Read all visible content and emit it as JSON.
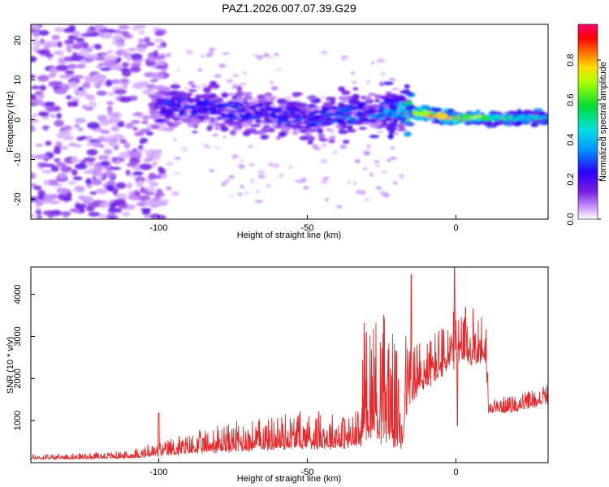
{
  "title": "PAZ1.2026.007.07.39.G29",
  "chart_data": [
    {
      "type": "heatmap",
      "xlabel": "Height of straight line (km)",
      "ylabel": "Frequency (Hz)",
      "xlim": [
        -143,
        31
      ],
      "ylim": [
        -25,
        24
      ],
      "xticks": [
        -100,
        -50,
        0
      ],
      "yticks": [
        20,
        10,
        0,
        -10,
        -20
      ],
      "colorbar": {
        "label": "Normalized spectral amplitude",
        "range": [
          0,
          0.98
        ],
        "ticks": [
          0,
          0.2,
          0.4,
          0.6,
          0.8
        ],
        "colormap": "white-purple-blue-cyan-green-yellow-red-magenta"
      },
      "ridge": [
        {
          "x": -100,
          "y": 3.5,
          "amp": 0.3
        },
        {
          "x": -90,
          "y": 3.0,
          "amp": 0.3
        },
        {
          "x": -80,
          "y": 2.5,
          "amp": 0.3
        },
        {
          "x": -70,
          "y": 2.0,
          "amp": 0.3
        },
        {
          "x": -60,
          "y": 1.0,
          "amp": 0.3
        },
        {
          "x": -50,
          "y": 0.5,
          "amp": 0.32
        },
        {
          "x": -40,
          "y": 1.0,
          "amp": 0.35
        },
        {
          "x": -30,
          "y": 2.0,
          "amp": 0.35
        },
        {
          "x": -20,
          "y": 2.5,
          "amp": 0.45
        },
        {
          "x": -10,
          "y": 1.5,
          "amp": 0.9
        },
        {
          "x": 0,
          "y": 0.5,
          "amp": 0.9
        },
        {
          "x": 10,
          "y": 0.5,
          "amp": 0.7
        },
        {
          "x": 20,
          "y": 0.5,
          "amp": 0.6
        },
        {
          "x": 31,
          "y": 0.5,
          "amp": 0.6
        }
      ]
    },
    {
      "type": "line",
      "xlabel": "Height of straight line (km)",
      "ylabel": "SNR (10 * v/v)",
      "xlim": [
        -143,
        31
      ],
      "ylim": [
        0,
        4650
      ],
      "xticks": [
        -100,
        -50,
        0
      ],
      "yticks": [
        1000,
        2000,
        3000,
        4000
      ],
      "color": "#e8282a",
      "envelope": [
        {
          "x": -143,
          "base": 90,
          "amp": 60
        },
        {
          "x": -125,
          "base": 100,
          "amp": 70
        },
        {
          "x": -110,
          "base": 120,
          "amp": 90
        },
        {
          "x": -100,
          "base": 180,
          "amp": 180
        },
        {
          "x": -90,
          "base": 250,
          "amp": 250
        },
        {
          "x": -80,
          "base": 300,
          "amp": 320
        },
        {
          "x": -70,
          "base": 350,
          "amp": 380
        },
        {
          "x": -60,
          "base": 380,
          "amp": 430
        },
        {
          "x": -50,
          "base": 420,
          "amp": 450
        },
        {
          "x": -40,
          "base": 420,
          "amp": 420
        },
        {
          "x": -32,
          "base": 440,
          "amp": 450
        },
        {
          "x": -31,
          "base": 900,
          "amp": 1500
        },
        {
          "x": -22,
          "base": 800,
          "amp": 1600
        },
        {
          "x": -18,
          "base": 400,
          "amp": 800
        },
        {
          "x": -17,
          "base": 1300,
          "amp": 1000
        },
        {
          "x": -10,
          "base": 1900,
          "amp": 600
        },
        {
          "x": 0,
          "base": 2400,
          "amp": 700
        },
        {
          "x": 10,
          "base": 2500,
          "amp": 700
        },
        {
          "x": 11,
          "base": 1200,
          "amp": 150
        },
        {
          "x": 20,
          "base": 1250,
          "amp": 200
        },
        {
          "x": 31,
          "base": 1450,
          "amp": 250
        }
      ],
      "spikes": [
        {
          "x": -100,
          "y": 1180
        },
        {
          "x": -15,
          "y": 4470
        },
        {
          "x": -0.5,
          "y": 4650
        },
        {
          "x": 0.5,
          "y": 880
        }
      ]
    }
  ]
}
